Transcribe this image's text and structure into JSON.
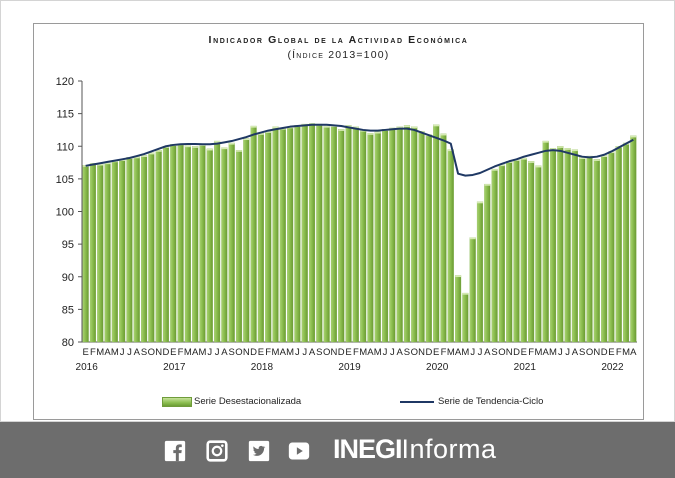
{
  "chart_data": {
    "type": "bar+line",
    "title": "Indicador Global de la Actividad Económica",
    "subtitle": "(Índice 2013=100)",
    "ylim": [
      80,
      120
    ],
    "yticks": [
      80,
      85,
      90,
      95,
      100,
      105,
      110,
      115,
      120
    ],
    "month_labels": [
      "E",
      "F",
      "M",
      "A",
      "M",
      "J",
      "J",
      "A",
      "S",
      "O",
      "N",
      "D"
    ],
    "years": [
      "2016",
      "2017",
      "2018",
      "2019",
      "2020",
      "2021",
      "2022"
    ],
    "x_start": "2016-01",
    "x_end": "2022-04",
    "grid": false,
    "legend_position": "bottom",
    "series": [
      {
        "name": "Serie Desestacionalizada",
        "kind": "bar",
        "color": "#8bbd4f",
        "values": [
          107.1,
          107.4,
          107.3,
          107.5,
          107.8,
          108.0,
          108.3,
          108.4,
          108.6,
          109.0,
          109.4,
          110.0,
          110.3,
          110.4,
          110.1,
          110.0,
          110.3,
          109.6,
          110.8,
          109.8,
          110.5,
          109.4,
          111.2,
          113.1,
          112.0,
          112.3,
          113.0,
          112.8,
          113.0,
          113.2,
          113.4,
          113.5,
          113.4,
          113.1,
          113.2,
          112.6,
          113.2,
          113.0,
          112.5,
          112.0,
          112.2,
          112.6,
          112.8,
          113.0,
          113.2,
          113.0,
          112.3,
          111.8,
          113.3,
          111.9,
          109.5,
          90.2,
          87.5,
          96.0,
          101.5,
          104.2,
          106.5,
          107.2,
          107.7,
          108.0,
          108.2,
          107.7,
          107.0,
          110.8,
          109.7,
          110.0,
          109.7,
          109.5,
          108.3,
          108.5,
          108.0,
          108.6,
          109.2,
          110.0,
          110.5,
          111.6
        ]
      },
      {
        "name": "Serie de Tendencia-Ciclo",
        "kind": "line",
        "color": "#1f3864",
        "values": [
          107.0,
          107.2,
          107.4,
          107.6,
          107.8,
          108.0,
          108.2,
          108.5,
          108.8,
          109.2,
          109.6,
          110.0,
          110.2,
          110.3,
          110.35,
          110.35,
          110.3,
          110.3,
          110.4,
          110.6,
          110.8,
          111.1,
          111.4,
          111.8,
          112.1,
          112.4,
          112.6,
          112.8,
          113.0,
          113.1,
          113.2,
          113.3,
          113.3,
          113.3,
          113.2,
          113.1,
          112.9,
          112.7,
          112.5,
          112.4,
          112.4,
          112.5,
          112.6,
          112.7,
          112.7,
          112.5,
          112.1,
          111.7,
          111.3,
          110.9,
          110.4,
          105.8,
          105.5,
          105.6,
          105.9,
          106.4,
          106.9,
          107.3,
          107.7,
          108.0,
          108.4,
          108.7,
          109.0,
          109.3,
          109.4,
          109.3,
          109.0,
          108.7,
          108.4,
          108.3,
          108.4,
          108.7,
          109.2,
          109.8,
          110.4,
          111.0
        ]
      }
    ]
  },
  "legend": {
    "bar_label": "Serie Desestacionalizada",
    "line_label": "Serie de Tendencia-Ciclo"
  },
  "footer": {
    "icons": [
      "facebook-icon",
      "instagram-icon",
      "twitter-icon",
      "youtube-icon"
    ],
    "brand_strong": "INEGI",
    "brand_light": "Informa",
    "background": "#6d6d6d"
  }
}
